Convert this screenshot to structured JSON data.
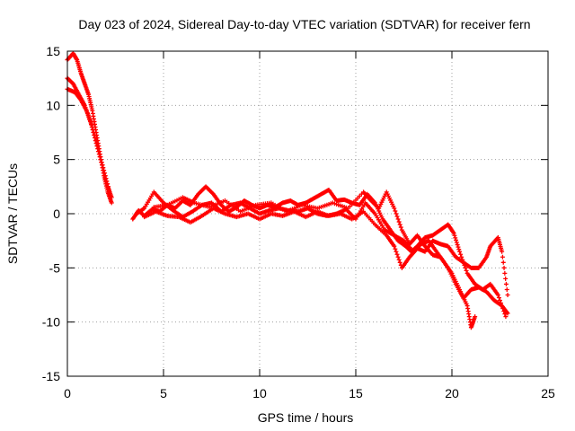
{
  "chart_data": {
    "type": "scatter",
    "title": "Day 023 of 2024, Sidereal Day-to-day VTEC variation (SDTVAR) for receiver fern",
    "xlabel": "GPS time / hours",
    "ylabel": "SDTVAR / TECUs",
    "xlim": [
      0,
      25
    ],
    "ylim": [
      -15,
      15
    ],
    "xticks": [
      0,
      5,
      10,
      15,
      20,
      25
    ],
    "yticks": [
      -15,
      -10,
      -5,
      0,
      5,
      10,
      15
    ],
    "grid": true,
    "series": [
      {
        "name": "sdtvar",
        "color": "#ff0000",
        "marker": "plus",
        "tracks": [
          [
            [
              0.0,
              14.2
            ],
            [
              0.3,
              14.8
            ],
            [
              0.5,
              14.2
            ],
            [
              0.7,
              13.0
            ],
            [
              0.9,
              12.0
            ],
            [
              1.1,
              11.0
            ],
            [
              1.3,
              9.5
            ],
            [
              1.5,
              7.5
            ],
            [
              1.7,
              5.5
            ],
            [
              1.9,
              3.5
            ],
            [
              2.1,
              2.0
            ],
            [
              2.3,
              1.0
            ]
          ],
          [
            [
              0.0,
              12.5
            ],
            [
              0.3,
              12.0
            ],
            [
              0.6,
              11.0
            ],
            [
              0.9,
              10.0
            ],
            [
              1.2,
              8.5
            ],
            [
              1.5,
              6.5
            ],
            [
              1.8,
              4.5
            ],
            [
              2.1,
              2.5
            ],
            [
              2.3,
              1.5
            ]
          ],
          [
            [
              0.0,
              11.5
            ],
            [
              0.4,
              11.2
            ],
            [
              0.7,
              10.5
            ],
            [
              1.0,
              9.5
            ],
            [
              1.3,
              8.0
            ],
            [
              1.6,
              6.0
            ],
            [
              1.9,
              4.0
            ],
            [
              2.2,
              2.0
            ]
          ],
          [
            [
              3.4,
              -0.5
            ],
            [
              3.7,
              0.3
            ],
            [
              4.0,
              -0.2
            ],
            [
              4.4,
              0.4
            ],
            [
              4.8,
              0.2
            ],
            [
              5.2,
              0.8
            ],
            [
              5.6,
              0.5
            ],
            [
              6.0,
              1.2
            ],
            [
              6.4,
              0.8
            ],
            [
              6.8,
              1.8
            ],
            [
              7.2,
              2.5
            ],
            [
              7.6,
              1.8
            ],
            [
              8.0,
              0.8
            ],
            [
              8.4,
              0.2
            ],
            [
              8.8,
              0.6
            ],
            [
              9.2,
              1.2
            ],
            [
              9.6,
              0.8
            ],
            [
              10.0,
              0.5
            ],
            [
              10.4,
              0.8
            ],
            [
              10.8,
              0.6
            ],
            [
              11.2,
              1.0
            ],
            [
              11.6,
              1.2
            ],
            [
              12.0,
              0.8
            ],
            [
              12.4,
              1.0
            ],
            [
              12.8,
              1.4
            ],
            [
              13.2,
              1.8
            ],
            [
              13.6,
              2.2
            ],
            [
              14.0,
              1.2
            ],
            [
              14.4,
              1.3
            ],
            [
              14.8,
              1.0
            ],
            [
              15.2,
              0.8
            ],
            [
              15.6,
              1.8
            ],
            [
              16.0,
              1.0
            ],
            [
              16.4,
              -0.5
            ],
            [
              16.8,
              -1.5
            ],
            [
              17.2,
              -2.5
            ],
            [
              17.6,
              -3.0
            ],
            [
              17.9,
              -3.5
            ],
            [
              18.2,
              -3.0
            ],
            [
              18.6,
              -2.2
            ],
            [
              19.0,
              -2.0
            ],
            [
              19.4,
              -1.5
            ],
            [
              19.8,
              -1.0
            ],
            [
              20.1,
              -1.8
            ],
            [
              20.4,
              -3.5
            ],
            [
              20.8,
              -5.5
            ],
            [
              21.2,
              -6.5
            ],
            [
              21.6,
              -7.0
            ],
            [
              22.0,
              -6.5
            ],
            [
              22.4,
              -7.5
            ],
            [
              22.8,
              -9.5
            ]
          ],
          [
            [
              3.6,
              0.0
            ],
            [
              4.0,
              0.5
            ],
            [
              4.5,
              2.0
            ],
            [
              5.0,
              1.0
            ],
            [
              5.5,
              0.3
            ],
            [
              6.0,
              -0.3
            ],
            [
              6.5,
              0.2
            ],
            [
              7.0,
              0.8
            ],
            [
              7.5,
              1.0
            ],
            [
              8.0,
              0.2
            ],
            [
              8.5,
              0.8
            ],
            [
              9.0,
              1.0
            ],
            [
              9.5,
              0.5
            ],
            [
              10.0,
              0.0
            ],
            [
              10.5,
              0.3
            ],
            [
              11.0,
              0.5
            ],
            [
              11.5,
              0.3
            ],
            [
              12.0,
              0.2
            ],
            [
              12.5,
              0.5
            ],
            [
              13.0,
              0.0
            ],
            [
              13.5,
              -0.2
            ],
            [
              14.0,
              0.0
            ],
            [
              14.5,
              0.4
            ],
            [
              15.0,
              -0.5
            ],
            [
              15.5,
              1.0
            ],
            [
              16.0,
              0.0
            ],
            [
              16.5,
              -1.5
            ],
            [
              17.0,
              -2.0
            ],
            [
              17.5,
              -2.5
            ],
            [
              18.0,
              -3.5
            ],
            [
              18.4,
              -2.8
            ],
            [
              18.8,
              -2.5
            ],
            [
              19.2,
              -3.5
            ],
            [
              19.6,
              -4.5
            ],
            [
              20.0,
              -5.5
            ],
            [
              20.4,
              -7.0
            ],
            [
              20.8,
              -8.5
            ],
            [
              21.0,
              -10.5
            ],
            [
              21.2,
              -9.5
            ]
          ],
          [
            [
              4.0,
              -0.3
            ],
            [
              4.6,
              0.2
            ],
            [
              5.2,
              -0.2
            ],
            [
              5.8,
              -0.3
            ],
            [
              6.4,
              -0.8
            ],
            [
              7.0,
              -0.2
            ],
            [
              7.6,
              0.5
            ],
            [
              8.2,
              0.0
            ],
            [
              8.8,
              -0.3
            ],
            [
              9.4,
              0.0
            ],
            [
              10.0,
              -0.5
            ],
            [
              10.6,
              0.0
            ],
            [
              11.2,
              -0.2
            ],
            [
              11.8,
              0.2
            ],
            [
              12.4,
              -0.3
            ],
            [
              13.0,
              0.2
            ],
            [
              13.6,
              -0.2
            ],
            [
              14.2,
              0.0
            ],
            [
              14.8,
              -0.5
            ],
            [
              15.4,
              0.2
            ],
            [
              16.0,
              -1.0
            ],
            [
              16.6,
              -2.0
            ],
            [
              17.0,
              -3.0
            ],
            [
              17.4,
              -5.0
            ],
            [
              17.8,
              -4.0
            ],
            [
              18.2,
              -3.2
            ],
            [
              18.6,
              -3.5
            ],
            [
              19.0,
              -2.5
            ],
            [
              19.4,
              -2.8
            ],
            [
              19.8,
              -3.0
            ],
            [
              20.2,
              -4.0
            ],
            [
              20.6,
              -4.5
            ],
            [
              21.0,
              -5.0
            ],
            [
              21.4,
              -5.0
            ],
            [
              21.8,
              -4.0
            ],
            [
              22.0,
              -3.0
            ],
            [
              22.4,
              -2.2
            ],
            [
              22.6,
              -3.5
            ],
            [
              22.9,
              -7.5
            ]
          ],
          [
            [
              4.5,
              0.6
            ],
            [
              5.2,
              0.8
            ],
            [
              6.0,
              1.5
            ],
            [
              6.6,
              1.0
            ],
            [
              7.4,
              0.6
            ],
            [
              8.2,
              1.2
            ],
            [
              9.0,
              0.2
            ],
            [
              9.8,
              0.8
            ],
            [
              10.6,
              1.0
            ],
            [
              11.4,
              0.2
            ],
            [
              12.2,
              0.8
            ],
            [
              13.0,
              0.5
            ],
            [
              13.8,
              1.0
            ],
            [
              14.6,
              0.5
            ],
            [
              15.4,
              2.0
            ],
            [
              15.8,
              1.2
            ],
            [
              16.2,
              0.5
            ],
            [
              16.6,
              2.0
            ],
            [
              17.0,
              0.5
            ],
            [
              17.4,
              -1.5
            ],
            [
              17.8,
              -2.8
            ],
            [
              18.2,
              -2.0
            ],
            [
              18.6,
              -3.0
            ],
            [
              19.0,
              -3.8
            ],
            [
              19.4,
              -4.0
            ],
            [
              19.8,
              -5.0
            ],
            [
              20.2,
              -6.5
            ],
            [
              20.6,
              -7.8
            ],
            [
              21.0,
              -7.0
            ],
            [
              21.4,
              -6.8
            ],
            [
              21.8,
              -7.2
            ],
            [
              22.2,
              -8.0
            ],
            [
              22.6,
              -8.5
            ],
            [
              22.9,
              -9.2
            ]
          ]
        ]
      }
    ]
  }
}
